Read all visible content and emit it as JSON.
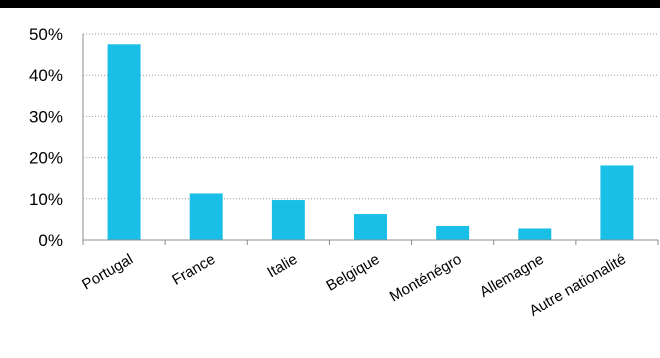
{
  "chart_data": {
    "type": "bar",
    "title": "",
    "xlabel": "",
    "ylabel": "",
    "categories": [
      "Portugal",
      "France",
      "Italie",
      "Belgique",
      "Monténégro",
      "Allemagne",
      "Autre nationalité"
    ],
    "values": [
      47.5,
      11.3,
      9.7,
      6.3,
      3.4,
      2.8,
      18.1
    ],
    "ylim": [
      0,
      50
    ],
    "yticks": [
      0,
      10,
      20,
      30,
      40,
      50
    ],
    "ytick_labels": [
      "0%",
      "10%",
      "20%",
      "30%",
      "40%",
      "50%"
    ],
    "grid": "horizontal dotted",
    "legend": "none",
    "bar_color": "#1ABFE8",
    "top_rule_color": "#000000"
  }
}
